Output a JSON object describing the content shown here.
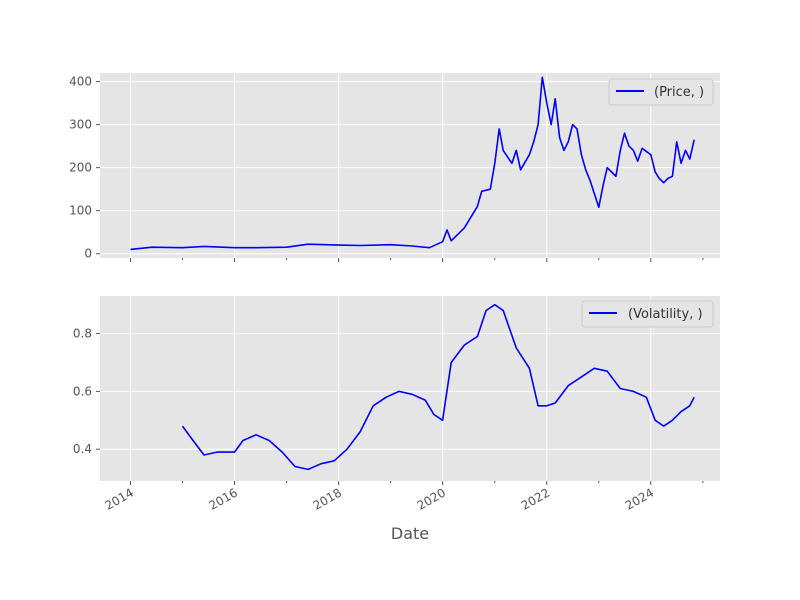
{
  "chart_data": [
    {
      "type": "line",
      "panel": "top",
      "title": "",
      "xlabel": "",
      "ylabel": "",
      "xlim": [
        "2013-06-01",
        "2025-05-01"
      ],
      "ylim": [
        -10,
        420
      ],
      "yticks": [
        0,
        100,
        200,
        300,
        400
      ],
      "grid": true,
      "legend_position": "top-right",
      "series": [
        {
          "name": "(Price, )",
          "color": "#0000ff",
          "points": [
            [
              "2014-01-01",
              10
            ],
            [
              "2014-06-01",
              15
            ],
            [
              "2015-01-01",
              14
            ],
            [
              "2015-06-01",
              17
            ],
            [
              "2016-01-01",
              14
            ],
            [
              "2016-06-01",
              14
            ],
            [
              "2017-01-01",
              15
            ],
            [
              "2017-06-01",
              22
            ],
            [
              "2018-01-01",
              20
            ],
            [
              "2018-06-01",
              19
            ],
            [
              "2019-01-01",
              21
            ],
            [
              "2019-06-01",
              18
            ],
            [
              "2019-10-01",
              14
            ],
            [
              "2020-01-01",
              28
            ],
            [
              "2020-02-01",
              55
            ],
            [
              "2020-03-01",
              30
            ],
            [
              "2020-06-01",
              60
            ],
            [
              "2020-09-01",
              110
            ],
            [
              "2020-10-01",
              145
            ],
            [
              "2020-12-01",
              150
            ],
            [
              "2021-01-01",
              210
            ],
            [
              "2021-02-01",
              290
            ],
            [
              "2021-03-01",
              240
            ],
            [
              "2021-05-01",
              210
            ],
            [
              "2021-06-01",
              240
            ],
            [
              "2021-07-01",
              195
            ],
            [
              "2021-09-01",
              230
            ],
            [
              "2021-10-01",
              260
            ],
            [
              "2021-11-01",
              300
            ],
            [
              "2021-12-01",
              410
            ],
            [
              "2022-01-01",
              350
            ],
            [
              "2022-02-01",
              300
            ],
            [
              "2022-03-01",
              360
            ],
            [
              "2022-04-01",
              270
            ],
            [
              "2022-05-01",
              240
            ],
            [
              "2022-06-01",
              260
            ],
            [
              "2022-07-01",
              300
            ],
            [
              "2022-08-01",
              290
            ],
            [
              "2022-09-01",
              230
            ],
            [
              "2022-10-01",
              195
            ],
            [
              "2022-11-01",
              170
            ],
            [
              "2023-01-01",
              108
            ],
            [
              "2023-02-01",
              160
            ],
            [
              "2023-03-01",
              200
            ],
            [
              "2023-04-01",
              190
            ],
            [
              "2023-05-01",
              180
            ],
            [
              "2023-06-01",
              240
            ],
            [
              "2023-07-01",
              280
            ],
            [
              "2023-08-01",
              250
            ],
            [
              "2023-09-01",
              240
            ],
            [
              "2023-10-01",
              215
            ],
            [
              "2023-11-01",
              245
            ],
            [
              "2024-01-01",
              230
            ],
            [
              "2024-02-01",
              190
            ],
            [
              "2024-03-01",
              175
            ],
            [
              "2024-04-01",
              165
            ],
            [
              "2024-05-01",
              175
            ],
            [
              "2024-06-01",
              180
            ],
            [
              "2024-07-01",
              260
            ],
            [
              "2024-08-01",
              210
            ],
            [
              "2024-09-01",
              240
            ],
            [
              "2024-10-01",
              220
            ],
            [
              "2024-11-01",
              265
            ]
          ]
        }
      ]
    },
    {
      "type": "line",
      "panel": "bottom",
      "title": "",
      "xlabel": "Date",
      "ylabel": "",
      "xlim": [
        "2013-06-01",
        "2025-05-01"
      ],
      "ylim": [
        0.29,
        0.93
      ],
      "yticks": [
        0.4,
        0.6,
        0.8
      ],
      "xticks": [
        "2014",
        "2016",
        "2018",
        "2020",
        "2022",
        "2024"
      ],
      "grid": true,
      "legend_position": "top-right",
      "series": [
        {
          "name": "(Volatility, )",
          "color": "#0000ff",
          "points": [
            [
              "2015-01-01",
              0.48
            ],
            [
              "2015-03-01",
              0.44
            ],
            [
              "2015-06-01",
              0.38
            ],
            [
              "2015-09-01",
              0.39
            ],
            [
              "2016-01-01",
              0.39
            ],
            [
              "2016-03-01",
              0.43
            ],
            [
              "2016-06-01",
              0.45
            ],
            [
              "2016-09-01",
              0.43
            ],
            [
              "2016-12-01",
              0.39
            ],
            [
              "2017-03-01",
              0.34
            ],
            [
              "2017-06-01",
              0.33
            ],
            [
              "2017-09-01",
              0.35
            ],
            [
              "2017-12-01",
              0.36
            ],
            [
              "2018-03-01",
              0.4
            ],
            [
              "2018-06-01",
              0.46
            ],
            [
              "2018-09-01",
              0.55
            ],
            [
              "2018-12-01",
              0.58
            ],
            [
              "2019-03-01",
              0.6
            ],
            [
              "2019-06-01",
              0.59
            ],
            [
              "2019-09-01",
              0.57
            ],
            [
              "2019-11-01",
              0.52
            ],
            [
              "2020-01-01",
              0.5
            ],
            [
              "2020-03-01",
              0.7
            ],
            [
              "2020-06-01",
              0.76
            ],
            [
              "2020-09-01",
              0.79
            ],
            [
              "2020-11-01",
              0.88
            ],
            [
              "2021-01-01",
              0.9
            ],
            [
              "2021-03-01",
              0.88
            ],
            [
              "2021-06-01",
              0.75
            ],
            [
              "2021-09-01",
              0.68
            ],
            [
              "2021-11-01",
              0.55
            ],
            [
              "2022-01-01",
              0.55
            ],
            [
              "2022-03-01",
              0.56
            ],
            [
              "2022-06-01",
              0.62
            ],
            [
              "2022-09-01",
              0.65
            ],
            [
              "2022-12-01",
              0.68
            ],
            [
              "2023-03-01",
              0.67
            ],
            [
              "2023-06-01",
              0.61
            ],
            [
              "2023-09-01",
              0.6
            ],
            [
              "2023-12-01",
              0.58
            ],
            [
              "2024-02-01",
              0.5
            ],
            [
              "2024-04-01",
              0.48
            ],
            [
              "2024-06-01",
              0.5
            ],
            [
              "2024-08-01",
              0.53
            ],
            [
              "2024-10-01",
              0.55
            ],
            [
              "2024-11-01",
              0.58
            ]
          ]
        }
      ]
    }
  ]
}
